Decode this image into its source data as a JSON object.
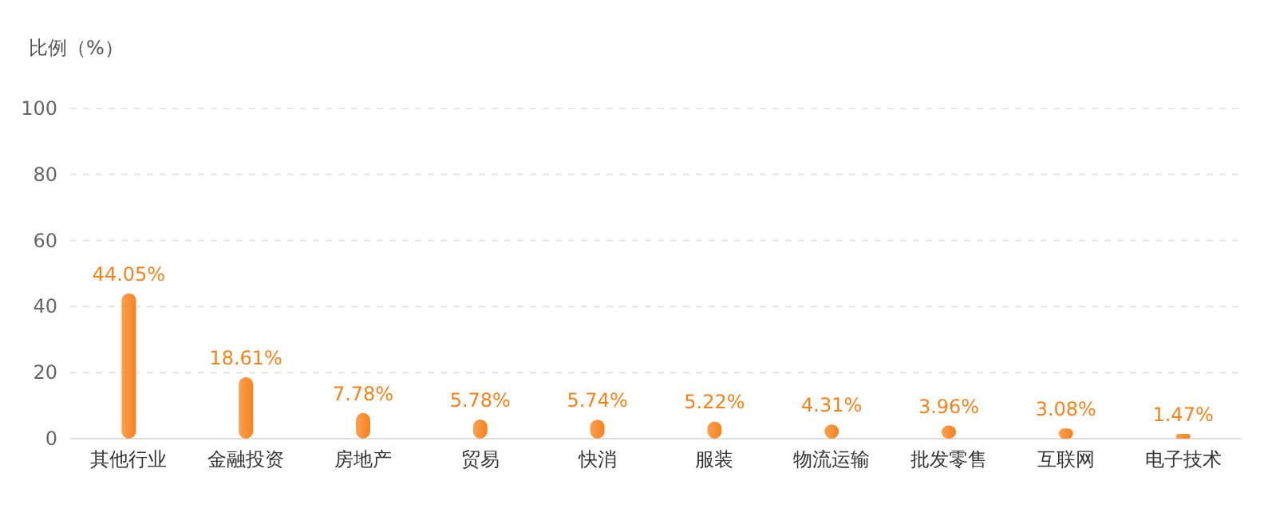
{
  "chart_data": {
    "type": "bar",
    "ylabel": "比例（%）",
    "categories": [
      "其他行业",
      "金融投资",
      "房地产",
      "贸易",
      "快消",
      "服装",
      "物流运输",
      "批发零售",
      "互联网",
      "电子技术"
    ],
    "values": [
      44.05,
      18.61,
      7.78,
      5.78,
      5.74,
      5.22,
      4.31,
      3.96,
      3.08,
      1.47
    ],
    "value_labels": [
      "44.05%",
      "18.61%",
      "7.78%",
      "5.78%",
      "5.74%",
      "5.22%",
      "4.31%",
      "3.96%",
      "3.08%",
      "1.47%"
    ],
    "color": "#f7821b",
    "ylim": [
      0,
      100
    ],
    "yticks": [
      0,
      20,
      40,
      60,
      80,
      100
    ],
    "grid": "y"
  }
}
